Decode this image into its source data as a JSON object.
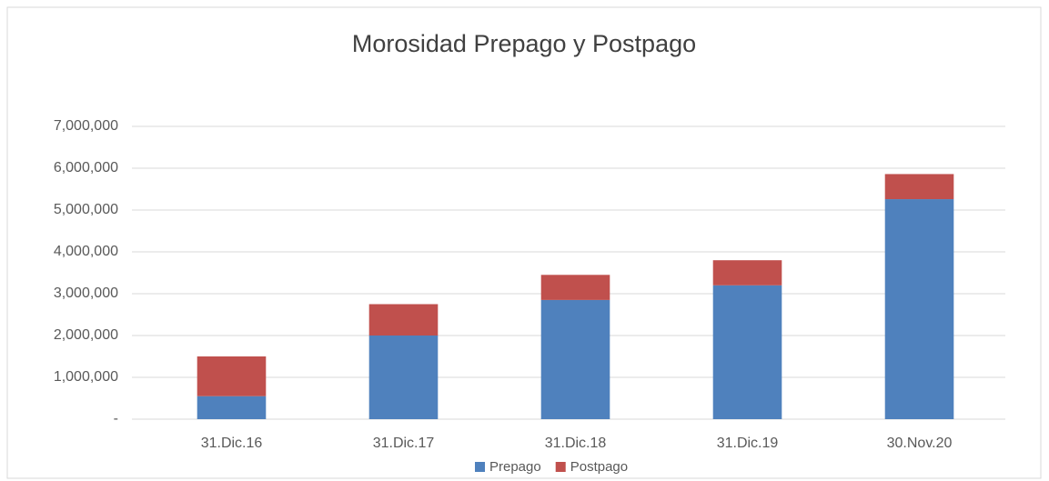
{
  "chart_data": {
    "type": "stacked_bar",
    "title": "Morosidad Prepago y Postpago",
    "categories": [
      "31.Dic.16",
      "31.Dic.17",
      "31.Dic.18",
      "31.Dic.19",
      "30.Nov.20"
    ],
    "series": [
      {
        "name": "Prepago",
        "color": "#4f81bd",
        "values": [
          550000,
          2000000,
          2850000,
          3200000,
          5260000
        ]
      },
      {
        "name": "Postpago",
        "color": "#c0504d",
        "values": [
          950000,
          750000,
          600000,
          600000,
          600000
        ]
      }
    ],
    "ylim": [
      0,
      7000000
    ],
    "yticks": [
      {
        "value": 0,
        "label": "-"
      },
      {
        "value": 1000000,
        "label": "1,000,000"
      },
      {
        "value": 2000000,
        "label": "2,000,000"
      },
      {
        "value": 3000000,
        "label": "3,000,000"
      },
      {
        "value": 4000000,
        "label": "4,000,000"
      },
      {
        "value": 5000000,
        "label": "5,000,000"
      },
      {
        "value": 6000000,
        "label": "6,000,000"
      },
      {
        "value": 7000000,
        "label": "7,000,000"
      }
    ],
    "grid": true,
    "legend": "bottom"
  }
}
